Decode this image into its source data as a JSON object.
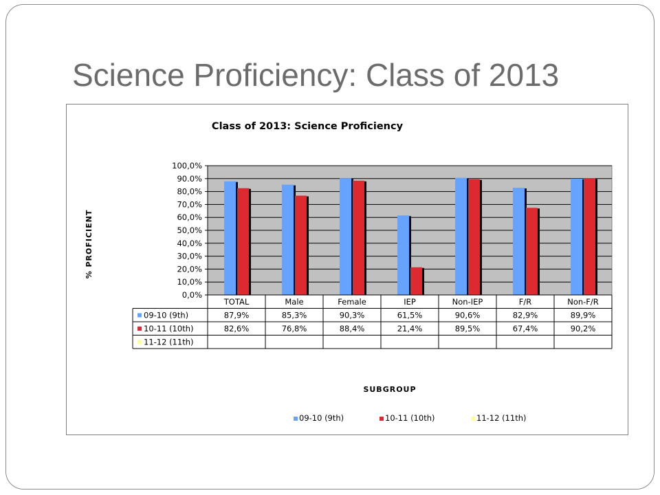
{
  "slide": {
    "title": "Science Proficiency:  Class of 2013"
  },
  "chart_data": {
    "type": "bar",
    "title": "Class of 2013:  Science Proficiency",
    "xlabel": "SUBGROUP",
    "ylabel": "% PROFICIENT",
    "ylim": [
      0,
      100
    ],
    "yticks": [
      0,
      10,
      20,
      30,
      40,
      50,
      60,
      70,
      80,
      90,
      100
    ],
    "ytick_labels": [
      "0,0%",
      "10,0%",
      "20,0%",
      "30,0%",
      "40,0%",
      "50,0%",
      "60,0%",
      "70,0%",
      "80,0%",
      "90.0%",
      "100,0%"
    ],
    "categories": [
      "TOTAL",
      "Male",
      "Female",
      "IEP",
      "Non-IEP",
      "F/R",
      "Non-F/R"
    ],
    "series": [
      {
        "name": "09-10 (9th)",
        "color": "#66a3ff",
        "values": [
          87.9,
          85.3,
          90.3,
          61.5,
          90.6,
          82.9,
          89.9
        ],
        "labels": [
          "87,9%",
          "85,3%",
          "90,3%",
          "61,5%",
          "90,6%",
          "82,9%",
          "89,9%"
        ]
      },
      {
        "name": "10-11 (10th)",
        "color": "#dd2a30",
        "values": [
          82.6,
          76.8,
          88.4,
          21.4,
          89.5,
          67.4,
          90.2
        ],
        "labels": [
          "82,6%",
          "76,8%",
          "88,4%",
          "21,4%",
          "89,5%",
          "67,4%",
          "90,2%"
        ]
      },
      {
        "name": "11-12 (11th)",
        "color": "#ffff99",
        "values": [
          null,
          null,
          null,
          null,
          null,
          null,
          null
        ],
        "labels": [
          "",
          "",
          "",
          "",
          "",
          "",
          ""
        ]
      }
    ],
    "plot_background": "#c0c0c0",
    "grid": true,
    "legend": "bottom",
    "data_table": true
  }
}
